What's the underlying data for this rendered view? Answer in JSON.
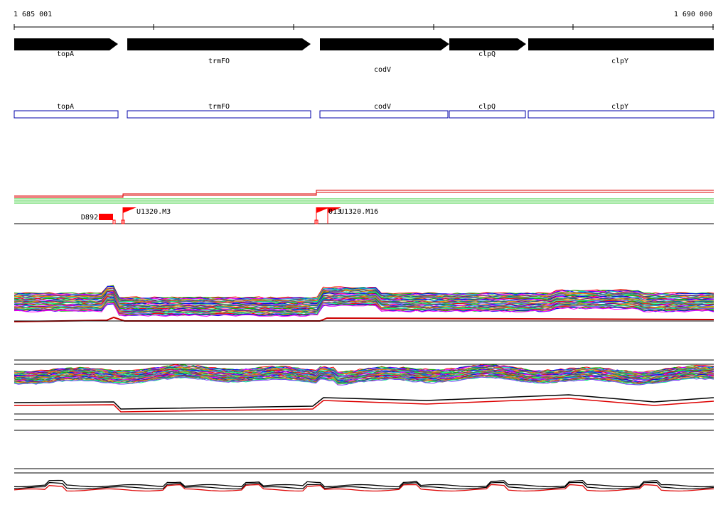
{
  "ruler": {
    "start_label": "1 685 001",
    "end_label": "1 690 000"
  },
  "genes": [
    {
      "name": "topA"
    },
    {
      "name": "trmFO"
    },
    {
      "name": "codV"
    },
    {
      "name": "clpQ"
    },
    {
      "name": "clpY"
    }
  ],
  "cds_boxes": [
    {
      "name": "topA"
    },
    {
      "name": "trmFO"
    },
    {
      "name": "codV"
    },
    {
      "name": "clpQ"
    },
    {
      "name": "clpY"
    }
  ],
  "features": [
    {
      "label": "D892"
    },
    {
      "label": "U1320.M3"
    },
    {
      "label": "U1320.M16"
    }
  ],
  "colors": {
    "gene_arrow": "#000000",
    "cds_box": "#0000aa",
    "feature": "#ff0000",
    "track_red": "#dd0000",
    "track_green": "#33cc33",
    "axis": "#000000"
  },
  "track_palette": [
    "#ff0000",
    "#00c000",
    "#0000ff",
    "#ff00ff",
    "#00c8c8",
    "#c8a000",
    "#800080",
    "#008080",
    "#ff8000",
    "#606060",
    "#00ff80",
    "#8040ff"
  ]
}
